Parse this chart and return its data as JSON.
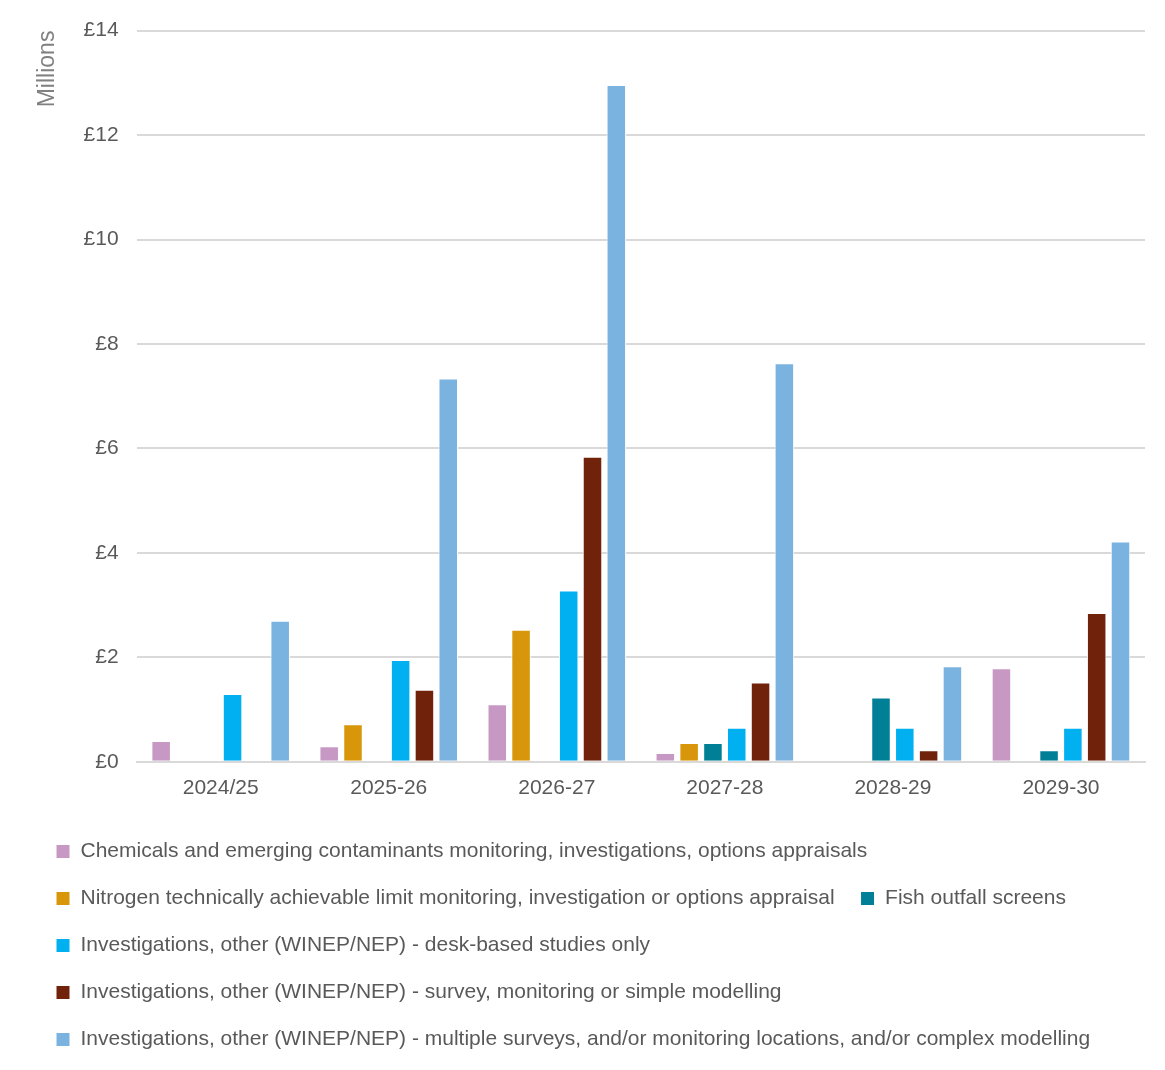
{
  "chart_data": {
    "type": "bar",
    "ylabel": "Millions",
    "categories": [
      "2024/25",
      "2025-26",
      "2026-27",
      "2027-28",
      "2028-29",
      "2029-30"
    ],
    "series": [
      {
        "name": "Chemicals and emerging contaminants monitoring, investigations, options appraisals",
        "color": "#c898c4",
        "values": [
          0.4,
          0.3,
          1.1,
          0.17,
          null,
          1.79
        ]
      },
      {
        "name": "Nitrogen technically achievable limit monitoring, investigation or options appraisal",
        "color": "#d8960a",
        "values": [
          null,
          0.72,
          2.53,
          0.36,
          null,
          null
        ]
      },
      {
        "name": "Fish outfall screens",
        "color": "#007f96",
        "values": [
          null,
          null,
          null,
          0.36,
          1.23,
          0.22
        ]
      },
      {
        "name": "Investigations, other (WINEP/NEP) - desk-based studies only",
        "color": "#00b0f0",
        "values": [
          1.3,
          1.95,
          3.28,
          0.65,
          0.65,
          0.65
        ]
      },
      {
        "name": "Investigations, other (WINEP/NEP) - survey, monitoring or simple modelling",
        "color": "#70220a",
        "values": [
          null,
          1.38,
          5.84,
          1.52,
          0.22,
          2.85
        ]
      },
      {
        "name": "Investigations, other (WINEP/NEP) - multiple surveys, and/or monitoring locations, and/or complex modelling",
        "color": "#7ab3e0",
        "values": [
          2.7,
          7.34,
          12.96,
          7.63,
          1.83,
          4.22
        ]
      }
    ],
    "ylim": [
      0,
      14
    ],
    "yticks": [
      {
        "value": 0,
        "label": "£0"
      },
      {
        "value": 2,
        "label": "£2"
      },
      {
        "value": 4,
        "label": "£4"
      },
      {
        "value": 6,
        "label": "£6"
      },
      {
        "value": 8,
        "label": "£8"
      },
      {
        "value": 10,
        "label": "£10"
      },
      {
        "value": 12,
        "label": "£12"
      },
      {
        "value": 14,
        "label": "£14"
      }
    ],
    "grid": "y",
    "legend": "bottom"
  }
}
